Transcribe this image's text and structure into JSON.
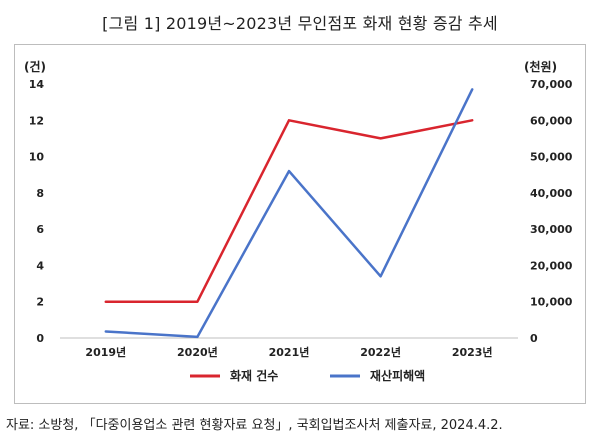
{
  "chart_title": "[그림 1] 2019년~2023년 무인점포 화재 현황 증감 추세",
  "source_text": "자료: 소방청, 「다중이용업소 관련 현황자료 요청」, 국회입법조사처 제출자료, 2024.4.2.",
  "chart_data": {
    "type": "line",
    "title": "[그림 1] 2019년~2023년 무인점포 화재 현황 증감 추세",
    "categories": [
      "2019년",
      "2020년",
      "2021년",
      "2022년",
      "2023년"
    ],
    "left_axis": {
      "unit_label": "(건)",
      "range": [
        0,
        14
      ],
      "ticks": [
        0,
        2,
        4,
        6,
        8,
        10,
        12,
        14
      ],
      "tick_labels": [
        "0",
        "2",
        "4",
        "6",
        "8",
        "10",
        "12",
        "14"
      ]
    },
    "right_axis": {
      "unit_label": "(천원)",
      "range": [
        0,
        70000
      ],
      "ticks": [
        0,
        10000,
        20000,
        30000,
        40000,
        50000,
        60000,
        70000
      ],
      "tick_labels": [
        "0",
        "10,000",
        "20,000",
        "30,000",
        "40,000",
        "50,000",
        "60,000",
        "70,000"
      ]
    },
    "series": [
      {
        "name": "화재 건수",
        "axis": "left",
        "color": "#d9252e",
        "values": [
          2,
          2,
          12,
          11,
          12
        ]
      },
      {
        "name": "재산피해액",
        "axis": "right",
        "color": "#4a74c9",
        "values": [
          1800,
          300,
          46000,
          17000,
          68500
        ]
      }
    ],
    "grid": false,
    "legend_position": "bottom"
  }
}
